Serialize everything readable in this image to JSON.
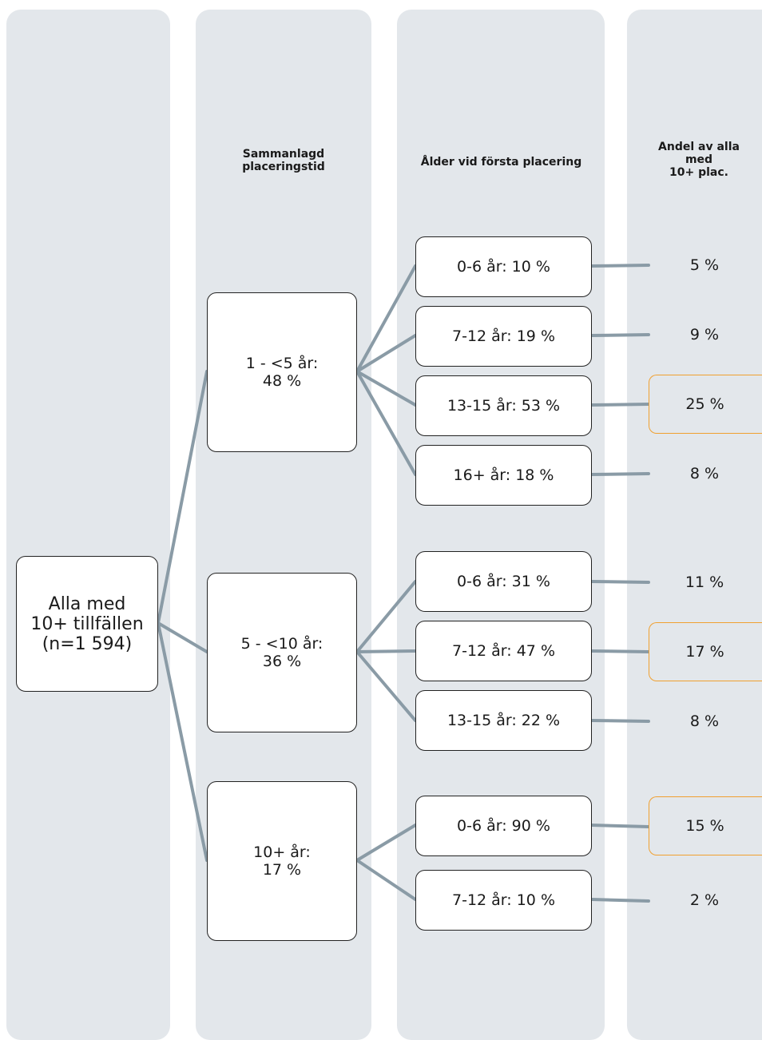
{
  "columns": {
    "duration_header": "Sammanlagd\nplaceringstid",
    "age_header": "Ålder vid första placering",
    "share_header": "Andel av alla\nmed\n10+ plac."
  },
  "root": {
    "label": "Alla med\n10+ tillfällen\n(n=1 594)"
  },
  "groups": [
    {
      "label": "1 - <5 år:\n48 %",
      "ages": [
        {
          "label": "0-6 år: 10 %",
          "share": "5 %",
          "highlight": false
        },
        {
          "label": "7-12 år: 19 %",
          "share": "9 %",
          "highlight": false
        },
        {
          "label": "13-15 år: 53 %",
          "share": "25 %",
          "highlight": true
        },
        {
          "label": "16+ år: 18 %",
          "share": "8 %",
          "highlight": false
        }
      ]
    },
    {
      "label": "5 - <10 år:\n36 %",
      "ages": [
        {
          "label": "0-6 år: 31 %",
          "share": "11 %",
          "highlight": false
        },
        {
          "label": "7-12 år: 47 %",
          "share": "17 %",
          "highlight": true
        },
        {
          "label": "13-15 år: 22 %",
          "share": "8 %",
          "highlight": false
        }
      ]
    },
    {
      "label": "10+ år:\n17 %",
      "ages": [
        {
          "label": "0-6 år: 90 %",
          "share": "15 %",
          "highlight": true
        },
        {
          "label": "7-12 år: 10 %",
          "share": "2 %",
          "highlight": false
        }
      ]
    }
  ],
  "colors": {
    "connector": "#8a9ba6",
    "highlight_border": "#f0a030",
    "column_bg": "#e3e7eb"
  }
}
